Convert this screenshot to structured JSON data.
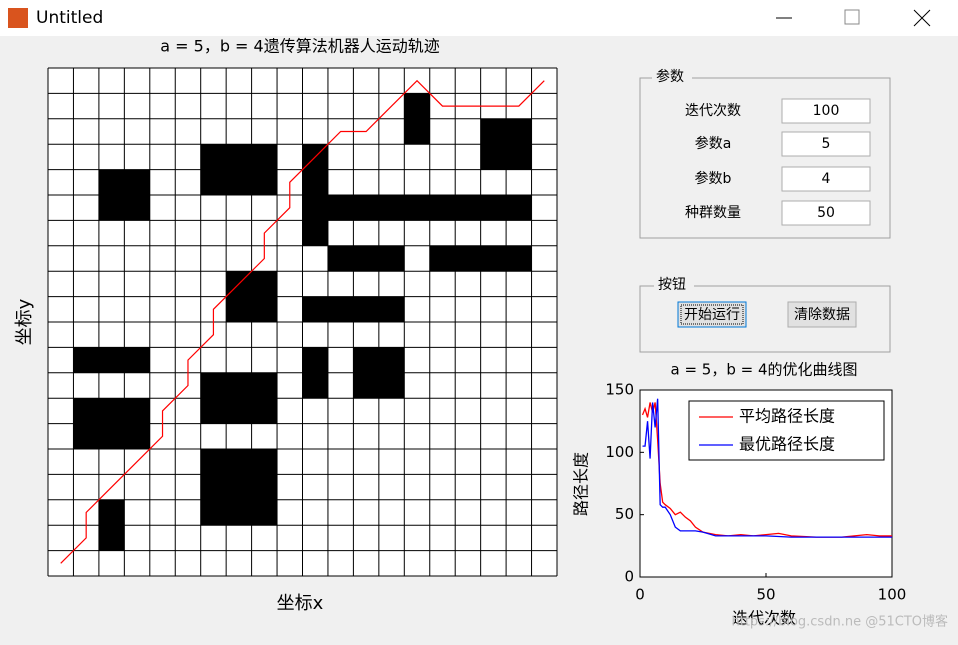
{
  "window": {
    "title": "Untitled"
  },
  "map_chart": {
    "type": "grid-map",
    "title": "a = 5，b = 4遗传算法机器人运动轨迹",
    "xlabel": "坐标x",
    "ylabel": "坐标y",
    "cells": [
      [
        0,
        0,
        0,
        0,
        0,
        0,
        0,
        0,
        0,
        0,
        0,
        0,
        0,
        0,
        0,
        0,
        0,
        0,
        0,
        0
      ],
      [
        0,
        0,
        0,
        0,
        0,
        0,
        0,
        0,
        0,
        0,
        0,
        0,
        0,
        0,
        1,
        0,
        0,
        0,
        0,
        0
      ],
      [
        0,
        0,
        0,
        0,
        0,
        0,
        0,
        0,
        0,
        0,
        0,
        0,
        0,
        0,
        1,
        0,
        0,
        1,
        1,
        0
      ],
      [
        0,
        0,
        0,
        0,
        0,
        0,
        1,
        1,
        1,
        0,
        1,
        0,
        0,
        0,
        0,
        0,
        0,
        1,
        1,
        0
      ],
      [
        0,
        0,
        1,
        1,
        0,
        0,
        1,
        1,
        1,
        0,
        1,
        0,
        0,
        0,
        0,
        0,
        0,
        0,
        0,
        0
      ],
      [
        0,
        0,
        1,
        1,
        0,
        0,
        0,
        0,
        0,
        0,
        1,
        1,
        1,
        1,
        1,
        1,
        1,
        1,
        1,
        0
      ],
      [
        0,
        0,
        0,
        0,
        0,
        0,
        0,
        0,
        0,
        0,
        1,
        0,
        0,
        0,
        0,
        0,
        0,
        0,
        0,
        0
      ],
      [
        0,
        0,
        0,
        0,
        0,
        0,
        0,
        0,
        0,
        0,
        0,
        1,
        1,
        1,
        0,
        1,
        1,
        1,
        1,
        0
      ],
      [
        0,
        0,
        0,
        0,
        0,
        0,
        0,
        1,
        1,
        0,
        0,
        0,
        0,
        0,
        0,
        0,
        0,
        0,
        0,
        0
      ],
      [
        0,
        0,
        0,
        0,
        0,
        0,
        0,
        1,
        1,
        0,
        1,
        1,
        1,
        1,
        0,
        0,
        0,
        0,
        0,
        0
      ],
      [
        0,
        0,
        0,
        0,
        0,
        0,
        0,
        0,
        0,
        0,
        0,
        0,
        0,
        0,
        0,
        0,
        0,
        0,
        0,
        0
      ],
      [
        0,
        1,
        1,
        1,
        0,
        0,
        0,
        0,
        0,
        0,
        1,
        0,
        1,
        1,
        0,
        0,
        0,
        0,
        0,
        0
      ],
      [
        0,
        0,
        0,
        0,
        0,
        0,
        1,
        1,
        1,
        0,
        1,
        0,
        1,
        1,
        0,
        0,
        0,
        0,
        0,
        0
      ],
      [
        0,
        1,
        1,
        1,
        0,
        0,
        1,
        1,
        1,
        0,
        0,
        0,
        0,
        0,
        0,
        0,
        0,
        0,
        0,
        0
      ],
      [
        0,
        1,
        1,
        1,
        0,
        0,
        0,
        0,
        0,
        0,
        0,
        0,
        0,
        0,
        0,
        0,
        0,
        0,
        0,
        0
      ],
      [
        0,
        0,
        0,
        0,
        0,
        0,
        1,
        1,
        1,
        0,
        0,
        0,
        0,
        0,
        0,
        0,
        0,
        0,
        0,
        0
      ],
      [
        0,
        0,
        0,
        0,
        0,
        0,
        1,
        1,
        1,
        0,
        0,
        0,
        0,
        0,
        0,
        0,
        0,
        0,
        0,
        0
      ],
      [
        0,
        0,
        1,
        0,
        0,
        0,
        1,
        1,
        1,
        0,
        0,
        0,
        0,
        0,
        0,
        0,
        0,
        0,
        0,
        0
      ],
      [
        0,
        0,
        1,
        0,
        0,
        0,
        0,
        0,
        0,
        0,
        0,
        0,
        0,
        0,
        0,
        0,
        0,
        0,
        0,
        0
      ],
      [
        0,
        0,
        0,
        0,
        0,
        0,
        0,
        0,
        0,
        0,
        0,
        0,
        0,
        0,
        0,
        0,
        0,
        0,
        0,
        0
      ]
    ],
    "path": {
      "color": "#ff0000",
      "x": [
        0,
        1,
        1,
        2,
        3,
        4,
        4,
        5,
        5,
        6,
        6,
        7,
        8,
        8,
        9,
        9,
        10,
        11,
        12,
        13,
        14,
        15,
        16,
        17,
        18,
        19
      ],
      "y": [
        19,
        18,
        17,
        16,
        15,
        14,
        13,
        12,
        11,
        10,
        9,
        8,
        7,
        6,
        5,
        4,
        3,
        2,
        2,
        1,
        0,
        1,
        1,
        1,
        1,
        0
      ]
    }
  },
  "params": {
    "title": "参数",
    "fields": [
      {
        "label": "迭代次数",
        "value": 100
      },
      {
        "label": "参数a",
        "value": 5
      },
      {
        "label": "参数b",
        "value": 4
      },
      {
        "label": "种群数量",
        "value": 50
      }
    ]
  },
  "buttons": {
    "title": "按钮",
    "items": [
      "开始运行",
      "清除数据"
    ]
  },
  "chart_data": {
    "type": "line",
    "title": "a = 5，b = 4的优化曲线图",
    "xlabel": "迭代次数",
    "ylabel": "路径长度",
    "xlim": [
      0,
      100
    ],
    "ylim": [
      0,
      150
    ],
    "xticks": [
      0,
      50,
      100
    ],
    "yticks": [
      0,
      50,
      100,
      150
    ],
    "legend": "upper right",
    "series": [
      {
        "name": "平均路径长度",
        "color": "#ff0000",
        "x": [
          1,
          2,
          3,
          4,
          5,
          6,
          7,
          8,
          9,
          10,
          12,
          14,
          16,
          18,
          20,
          22,
          25,
          30,
          35,
          40,
          45,
          50,
          55,
          60,
          70,
          80,
          85,
          90,
          95,
          100
        ],
        "values": [
          130,
          135,
          128,
          140,
          132,
          140,
          110,
          75,
          60,
          58,
          55,
          50,
          52,
          48,
          45,
          40,
          36,
          34,
          33,
          34,
          33,
          34,
          35,
          33,
          32,
          32,
          33,
          34,
          33,
          33
        ]
      },
      {
        "name": "最优路径长度",
        "color": "#0000ff",
        "x": [
          1,
          2,
          3,
          4,
          5,
          6,
          7,
          8,
          9,
          10,
          12,
          14,
          16,
          18,
          22,
          25,
          30,
          35,
          40,
          50,
          60,
          70,
          80,
          90,
          100
        ],
        "values": [
          105,
          105,
          125,
          95,
          140,
          120,
          143,
          58,
          56,
          56,
          50,
          40,
          37,
          37,
          37,
          36,
          33,
          33,
          33,
          33,
          32,
          32,
          32,
          32,
          32
        ]
      }
    ]
  },
  "watermark": "https://blog.csdn.ne @51CTO博客"
}
